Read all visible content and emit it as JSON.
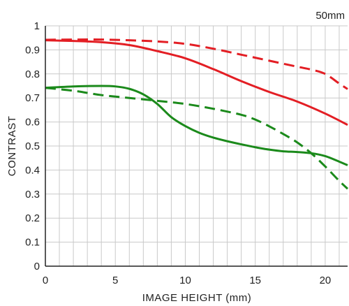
{
  "chart_data": {
    "type": "line",
    "title": "50mm",
    "xlabel": "IMAGE HEIGHT (mm)",
    "ylabel": "CONTRAST",
    "xlim": [
      0,
      21.6
    ],
    "ylim": [
      0,
      1
    ],
    "x_ticks": [
      0,
      5,
      10,
      15,
      20
    ],
    "y_ticks": [
      0,
      0.1,
      0.2,
      0.3,
      0.4,
      0.5,
      0.6,
      0.7,
      0.8,
      0.9,
      1
    ],
    "y_tick_labels": [
      "0",
      "0.1",
      "0.2",
      "0.3",
      "0.4",
      "0.5",
      "0.6",
      "0.7",
      "0.8",
      "0.9",
      "1"
    ],
    "x_tick_labels": [
      "0",
      "5",
      "10",
      "15",
      "20"
    ],
    "grid": true,
    "series": [
      {
        "color": "#e31e24",
        "style": "solid",
        "x": [
          0,
          2,
          4,
          6,
          8,
          10,
          12,
          14,
          16,
          18,
          20,
          21.6
        ],
        "y": [
          0.94,
          0.937,
          0.932,
          0.92,
          0.895,
          0.865,
          0.82,
          0.77,
          0.725,
          0.685,
          0.635,
          0.588
        ]
      },
      {
        "color": "#e31e24",
        "style": "dashed",
        "x": [
          0,
          2,
          4,
          6,
          8,
          10,
          12,
          14,
          16,
          18,
          19,
          20,
          21,
          21.6
        ],
        "y": [
          0.942,
          0.943,
          0.943,
          0.94,
          0.935,
          0.925,
          0.905,
          0.88,
          0.855,
          0.83,
          0.818,
          0.8,
          0.76,
          0.737
        ]
      },
      {
        "color": "#1b8a1b",
        "style": "solid",
        "x": [
          0,
          2,
          4,
          5,
          6,
          7,
          8,
          9,
          10,
          11,
          12,
          13,
          14,
          15,
          16,
          17,
          18,
          19,
          20,
          21,
          21.6
        ],
        "y": [
          0.742,
          0.748,
          0.75,
          0.748,
          0.738,
          0.715,
          0.675,
          0.62,
          0.583,
          0.555,
          0.535,
          0.52,
          0.507,
          0.495,
          0.485,
          0.478,
          0.475,
          0.47,
          0.458,
          0.435,
          0.42
        ]
      },
      {
        "color": "#1b8a1b",
        "style": "dashed",
        "x": [
          0,
          2,
          4,
          6,
          8,
          10,
          12,
          14,
          15,
          16,
          17,
          18,
          19,
          20,
          21,
          21.6
        ],
        "y": [
          0.742,
          0.73,
          0.712,
          0.7,
          0.688,
          0.675,
          0.655,
          0.63,
          0.61,
          0.582,
          0.55,
          0.515,
          0.47,
          0.415,
          0.355,
          0.322
        ]
      }
    ]
  },
  "colors": {
    "grid": "#c9c9c9",
    "axis": "#222222",
    "red": "#e31e24",
    "green": "#1b8a1b"
  }
}
